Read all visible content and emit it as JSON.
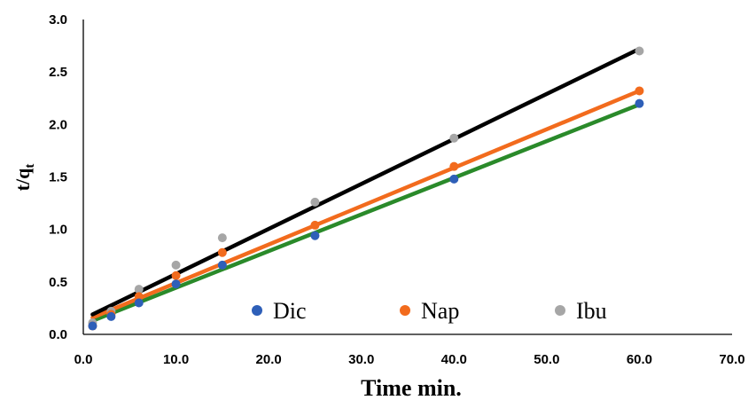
{
  "chart_data": {
    "type": "scatter",
    "title": "",
    "xlabel": "Time min.",
    "ylabel_main": "t/q",
    "ylabel_sub": "t",
    "xlim": [
      0,
      70
    ],
    "ylim": [
      0,
      3
    ],
    "x_ticks": [
      "0.0",
      "10.0",
      "20.0",
      "30.0",
      "40.0",
      "50.0",
      "60.0",
      "70.0"
    ],
    "y_ticks": [
      "0.0",
      "0.5",
      "1.0",
      "1.5",
      "2.0",
      "2.5",
      "3.0"
    ],
    "grid": false,
    "legend_position": "bottom-inside",
    "series": [
      {
        "name": "Dic",
        "marker_color": "#2e5fb8",
        "trend_color": "#2a8a2a",
        "x": [
          1,
          3,
          6,
          10,
          15,
          25,
          40,
          60
        ],
        "y": [
          0.08,
          0.17,
          0.3,
          0.48,
          0.66,
          0.94,
          1.48,
          2.2
        ],
        "trendline": [
          [
            1,
            0.13
          ],
          [
            60,
            2.19
          ]
        ]
      },
      {
        "name": "Nap",
        "marker_color": "#f26b1d",
        "trend_color": "#f26b1d",
        "x": [
          1,
          3,
          6,
          10,
          15,
          25,
          40,
          60
        ],
        "y": [
          0.08,
          0.19,
          0.36,
          0.56,
          0.78,
          1.04,
          1.6,
          2.32
        ],
        "trendline": [
          [
            1,
            0.16
          ],
          [
            60,
            2.32
          ]
        ]
      },
      {
        "name": "Ibu",
        "marker_color": "#a6a6a6",
        "trend_color": "#000000",
        "x": [
          1,
          3,
          6,
          10,
          15,
          25,
          40,
          60
        ],
        "y": [
          0.11,
          0.22,
          0.43,
          0.66,
          0.92,
          1.26,
          1.87,
          2.7
        ],
        "trendline": [
          [
            1,
            0.19
          ],
          [
            60,
            2.72
          ]
        ]
      }
    ]
  }
}
